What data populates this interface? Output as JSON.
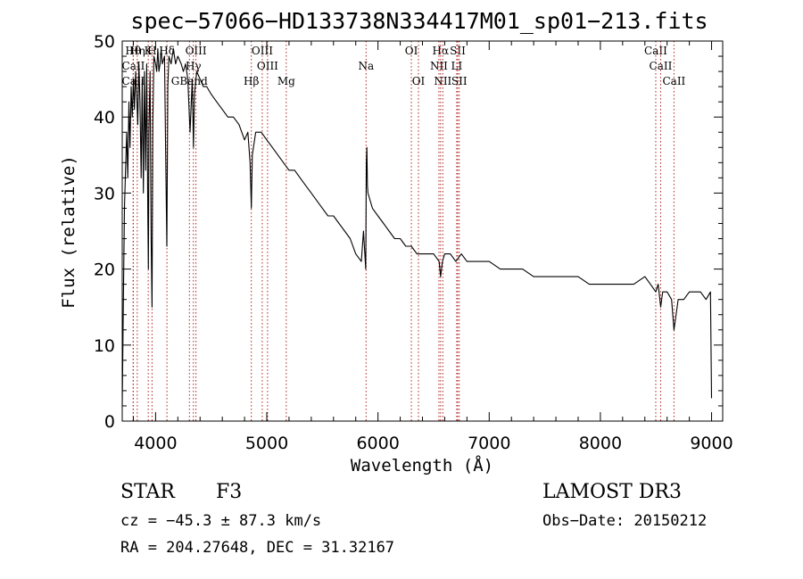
{
  "chart_data": {
    "type": "line",
    "title": "spec−57066−HD133738N334417M01_sp01−213.fits",
    "xlabel": "Wavelength (Å)",
    "ylabel": "Flux (relative)",
    "xlim": [
      3700,
      9100
    ],
    "ylim": [
      0,
      50
    ],
    "xticks": [
      4000,
      5000,
      6000,
      7000,
      8000,
      9000
    ],
    "yticks": [
      0,
      10,
      20,
      30,
      40,
      50
    ],
    "grid": false,
    "series": [
      {
        "name": "spectrum",
        "x": [
          3700,
          3710,
          3720,
          3730,
          3740,
          3750,
          3760,
          3770,
          3780,
          3790,
          3800,
          3810,
          3820,
          3830,
          3840,
          3850,
          3860,
          3870,
          3880,
          3890,
          3900,
          3910,
          3920,
          3930,
          3935,
          3940,
          3950,
          3960,
          3968,
          3975,
          3985,
          4000,
          4010,
          4020,
          4030,
          4040,
          4050,
          4060,
          4080,
          4090,
          4101,
          4110,
          4120,
          4140,
          4160,
          4180,
          4200,
          4230,
          4250,
          4270,
          4290,
          4310,
          4330,
          4340,
          4350,
          4370,
          4400,
          4430,
          4460,
          4500,
          4550,
          4600,
          4650,
          4700,
          4750,
          4800,
          4830,
          4850,
          4861,
          4870,
          4900,
          4950,
          5000,
          5050,
          5100,
          5150,
          5200,
          5250,
          5300,
          5350,
          5400,
          5450,
          5500,
          5550,
          5600,
          5650,
          5700,
          5750,
          5800,
          5850,
          5870,
          5890,
          5895,
          5900,
          5905,
          5910,
          5930,
          5950,
          6000,
          6050,
          6100,
          6150,
          6200,
          6250,
          6300,
          6350,
          6400,
          6450,
          6500,
          6550,
          6563,
          6580,
          6600,
          6650,
          6700,
          6750,
          6800,
          6850,
          6900,
          6950,
          7000,
          7100,
          7200,
          7300,
          7400,
          7500,
          7600,
          7700,
          7800,
          7900,
          8000,
          8100,
          8200,
          8300,
          8400,
          8450,
          8498,
          8520,
          8542,
          8560,
          8600,
          8640,
          8662,
          8700,
          8750,
          8800,
          8850,
          8900,
          8950,
          8990,
          9000
        ],
        "values": [
          2,
          15,
          28,
          33,
          38,
          32,
          42,
          36,
          44,
          40,
          45,
          41,
          46,
          43,
          39,
          47,
          42,
          32,
          45,
          30,
          46,
          33,
          47,
          27,
          20,
          38,
          46,
          24,
          15,
          39,
          48,
          47,
          46,
          49,
          46,
          47,
          49,
          47,
          48,
          36,
          23,
          44,
          48,
          47,
          49,
          47,
          48,
          47,
          46,
          47,
          45,
          38,
          45,
          36,
          43,
          46,
          45,
          44,
          44,
          43,
          42,
          41,
          40,
          40,
          39,
          37,
          38,
          34,
          28,
          35,
          38,
          38,
          37,
          36,
          35,
          34,
          33,
          33,
          32,
          31,
          30,
          29,
          28,
          27,
          27,
          26,
          25,
          24,
          22,
          21,
          25,
          20,
          34,
          36,
          31,
          30,
          29,
          28,
          27,
          26,
          25,
          24,
          24,
          23,
          23,
          22,
          22,
          22,
          22,
          21,
          19,
          21,
          22,
          22,
          21,
          22,
          21,
          21,
          21,
          21,
          21,
          20,
          20,
          20,
          19,
          19,
          19,
          19,
          19,
          18,
          18,
          18,
          18,
          18,
          19,
          18,
          17,
          18,
          15,
          17,
          17,
          16,
          12,
          16,
          16,
          17,
          17,
          17,
          16,
          17,
          3
        ]
      }
    ],
    "line_markers": [
      {
        "name": "Hθ",
        "x": 3798,
        "row": 1
      },
      {
        "name": "CaII",
        "x": 3800,
        "row": 2
      },
      {
        "name": "CaII",
        "x": 3800,
        "row": 3
      },
      {
        "name": "Hη",
        "x": 3835,
        "row": 1
      },
      {
        "name": "K",
        "x": 3934,
        "row": 1
      },
      {
        "name": "H",
        "x": 3968,
        "row": 1
      },
      {
        "name": "Hδ",
        "x": 4102,
        "row": 1
      },
      {
        "name": "OIII",
        "x": 4363,
        "row": 1
      },
      {
        "name": "Hγ",
        "x": 4340,
        "row": 2
      },
      {
        "name": "GBand",
        "x": 4304,
        "row": 3
      },
      {
        "name": "Hβ",
        "x": 4861,
        "row": 3
      },
      {
        "name": "OIII",
        "x": 4959,
        "row": 1
      },
      {
        "name": "OIII",
        "x": 5007,
        "row": 2
      },
      {
        "name": "Mg",
        "x": 5175,
        "row": 3
      },
      {
        "name": "Na",
        "x": 5893,
        "row": 2
      },
      {
        "name": "OI",
        "x": 6300,
        "row": 1
      },
      {
        "name": "OI",
        "x": 6364,
        "row": 3
      },
      {
        "name": "Hα",
        "x": 6563,
        "row": 1
      },
      {
        "name": "NII",
        "x": 6548,
        "row": 2
      },
      {
        "name": "NII",
        "x": 6583,
        "row": 3
      },
      {
        "name": "SII",
        "x": 6717,
        "row": 1
      },
      {
        "name": "LI",
        "x": 6708,
        "row": 2
      },
      {
        "name": "SII",
        "x": 6731,
        "row": 3
      },
      {
        "name": "CaII",
        "x": 8498,
        "row": 1
      },
      {
        "name": "CaII",
        "x": 8542,
        "row": 2
      },
      {
        "name": "CaII",
        "x": 8662,
        "row": 3
      }
    ]
  },
  "info": {
    "object_class": "STAR",
    "subclass": "F3",
    "survey": "LAMOST DR3",
    "cz": "cz = −45.3 ± 87.3 km/s",
    "obs_date": "Obs−Date: 20150212",
    "coords": "RA = 204.27648, DEC =  31.32167"
  },
  "colors": {
    "spectrum": "#000000",
    "marker": "#b22222",
    "axes": "#000000"
  }
}
